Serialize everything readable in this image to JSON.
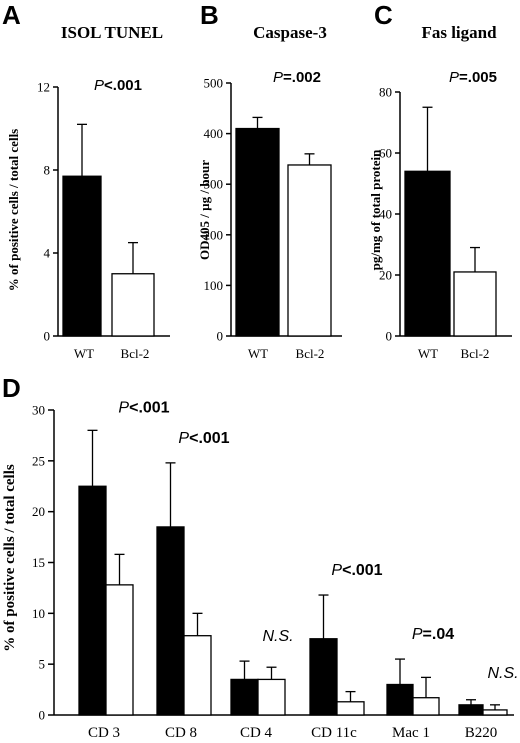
{
  "colors": {
    "wt": "#000000",
    "bcl2": "#ffffff",
    "stroke": "#000000"
  },
  "chart_data": [
    {
      "panel": "A",
      "type": "bar",
      "title": "ISOL TUNEL",
      "ylabel": "% of positive cells / total cells",
      "ylim": [
        0,
        12
      ],
      "yticks": [
        "0",
        "4",
        "8",
        "12"
      ],
      "categories": [
        "WT",
        "Bcl-2"
      ],
      "values": [
        7.7,
        3.0
      ],
      "errors": [
        2.5,
        1.5
      ],
      "pvalue": {
        "prefix": "P",
        "text": "<.001"
      }
    },
    {
      "panel": "B",
      "type": "bar",
      "title": "Caspase-3",
      "ylabel": "OD405 / µg / hour",
      "ylim": [
        0,
        500
      ],
      "yticks": [
        "0",
        "100",
        "200",
        "300",
        "400",
        "500"
      ],
      "categories": [
        "WT",
        "Bcl-2"
      ],
      "values": [
        410,
        338
      ],
      "errors": [
        22,
        22
      ],
      "pvalue": {
        "prefix": "P",
        "text": "=.002"
      }
    },
    {
      "panel": "C",
      "type": "bar",
      "title": "Fas ligand",
      "ylabel": "pg/mg of total protein",
      "ylim": [
        0,
        80
      ],
      "yticks": [
        "0",
        "20",
        "40",
        "60",
        "80"
      ],
      "categories": [
        "WT",
        "Bcl-2"
      ],
      "values": [
        54,
        21
      ],
      "errors": [
        21,
        8
      ],
      "pvalue": {
        "prefix": "P",
        "text": "=.005"
      }
    },
    {
      "panel": "D",
      "type": "bar",
      "ylabel": "% of positive cells / total cells",
      "ylim": [
        0,
        30
      ],
      "yticks": [
        "0",
        "5",
        "10",
        "15",
        "20",
        "25",
        "30"
      ],
      "categories": [
        "CD 3",
        "CD 8",
        "CD 4",
        "CD 11c",
        "Mac 1",
        "B220"
      ],
      "series": [
        {
          "values": [
            22.5,
            18.5,
            3.5,
            7.5,
            3.0,
            1.0
          ],
          "errors": [
            5.5,
            6.3,
            1.8,
            4.3,
            2.5,
            0.5
          ]
        },
        {
          "values": [
            12.8,
            7.8,
            3.5,
            1.3,
            1.7,
            0.5
          ],
          "errors": [
            3.0,
            2.2,
            1.2,
            1.0,
            2.0,
            0.5
          ]
        }
      ],
      "annotations": [
        {
          "prefix": "P",
          "text": "<.001"
        },
        {
          "prefix": "P",
          "text": "<.001"
        },
        {
          "prefix": "",
          "text": "N.S."
        },
        {
          "prefix": "P",
          "text": "<.001"
        },
        {
          "prefix": "P",
          "text": "=.04"
        },
        {
          "prefix": "",
          "text": "N.S."
        }
      ]
    }
  ]
}
